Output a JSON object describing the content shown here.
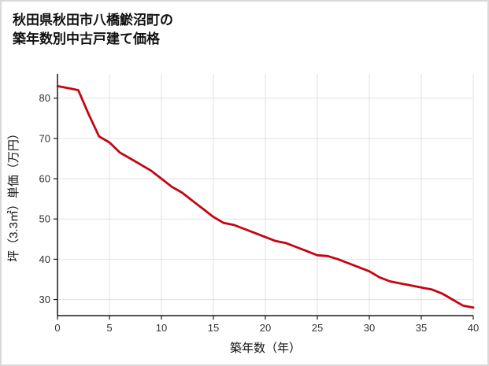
{
  "header": {
    "title_line1": "秋田県秋田市八橋鯲沼町の",
    "title_line2": "築年数別中古戸建て価格"
  },
  "colors": {
    "line": "#c40411",
    "grid": "#e2e2e2",
    "axis": "#1a1a1a",
    "tick_text": "#333333",
    "page_border": "#d9d9d9"
  },
  "chart_data": {
    "type": "line",
    "title": "秋田県秋田市八橋鯲沼町の 築年数別中古戸建て価格",
    "xlabel": "築年数（年）",
    "ylabel": "坪（3.3㎡）単価（万円）",
    "x": [
      0,
      1,
      2,
      3,
      4,
      5,
      6,
      7,
      8,
      9,
      10,
      11,
      12,
      13,
      14,
      15,
      16,
      17,
      18,
      19,
      20,
      21,
      22,
      23,
      24,
      25,
      26,
      27,
      28,
      29,
      30,
      31,
      32,
      33,
      34,
      35,
      36,
      37,
      38,
      39,
      40
    ],
    "values": [
      83,
      82.5,
      82,
      76,
      70.5,
      69,
      66.5,
      65,
      63.5,
      62,
      60,
      58,
      56.5,
      54.5,
      52.5,
      50.5,
      49,
      48.5,
      47.5,
      46.5,
      45.5,
      44.5,
      44,
      43,
      42,
      41,
      40.8,
      40,
      39,
      38,
      37,
      35.5,
      34.5,
      34,
      33.5,
      33,
      32.5,
      31.5,
      30,
      28.5,
      28
    ],
    "xlim": [
      0,
      40
    ],
    "ylim": [
      26,
      86
    ],
    "xticks": [
      0,
      5,
      10,
      15,
      20,
      25,
      30,
      35,
      40
    ],
    "yticks": [
      30,
      40,
      50,
      60,
      70,
      80
    ],
    "grid": true,
    "legend": "none"
  }
}
